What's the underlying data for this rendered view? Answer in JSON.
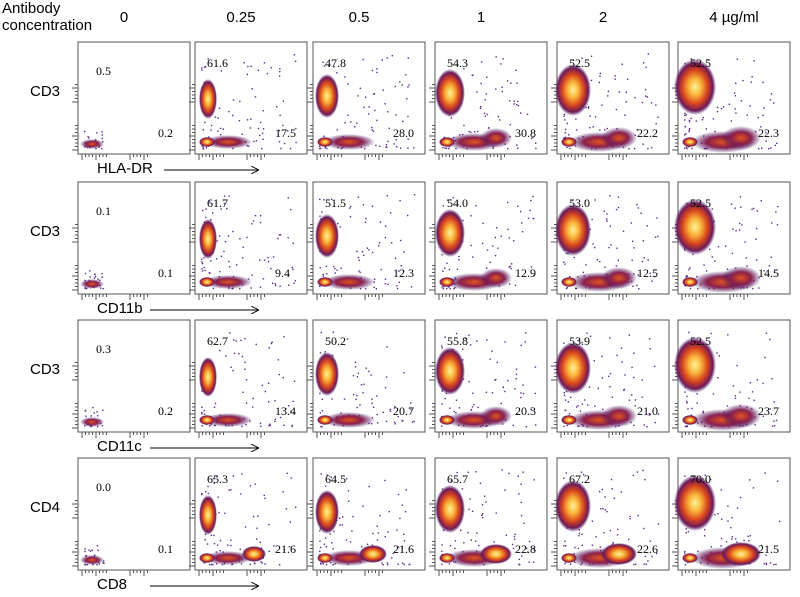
{
  "header": {
    "title_line1": "Antibody",
    "title_line2": "concentration",
    "columns": [
      "0",
      "0.25",
      "0.5",
      "1",
      "2",
      "4 µg/ml"
    ]
  },
  "rows": [
    {
      "y_label": "CD3",
      "x_label": "HLA-DR",
      "cells": [
        {
          "upper": "0.5",
          "lower": "0.2"
        },
        {
          "upper": "61.6",
          "lower": "17.5"
        },
        {
          "upper": "47.8",
          "lower": "28.0"
        },
        {
          "upper": "54.3",
          "lower": "30.8"
        },
        {
          "upper": "52.5",
          "lower": "22.2"
        },
        {
          "upper": "52.5",
          "lower": "22.3"
        }
      ]
    },
    {
      "y_label": "CD3",
      "x_label": "CD11b",
      "cells": [
        {
          "upper": "0.1",
          "lower": "0.1"
        },
        {
          "upper": "61.7",
          "lower": "9.4"
        },
        {
          "upper": "51.5",
          "lower": "12.3"
        },
        {
          "upper": "54.0",
          "lower": "12.9"
        },
        {
          "upper": "53.0",
          "lower": "12.5"
        },
        {
          "upper": "52.5",
          "lower": "14.5"
        }
      ]
    },
    {
      "y_label": "CD3",
      "x_label": "CD11c",
      "cells": [
        {
          "upper": "0.3",
          "lower": "0.2"
        },
        {
          "upper": "62.7",
          "lower": "13.4"
        },
        {
          "upper": "50.2",
          "lower": "20.7"
        },
        {
          "upper": "55.8",
          "lower": "20.3"
        },
        {
          "upper": "53.9",
          "lower": "21.0"
        },
        {
          "upper": "52.5",
          "lower": "23.7"
        }
      ]
    },
    {
      "y_label": "CD4",
      "x_label": "CD8",
      "cells": [
        {
          "upper": "0.0",
          "lower": "0.1"
        },
        {
          "upper": "65.3",
          "lower": "21.6"
        },
        {
          "upper": "64.5",
          "lower": "21.6"
        },
        {
          "upper": "65.7",
          "lower": "22.8"
        },
        {
          "upper": "67.2",
          "lower": "22.6"
        },
        {
          "upper": "70.0",
          "lower": "21.5"
        }
      ]
    }
  ]
}
